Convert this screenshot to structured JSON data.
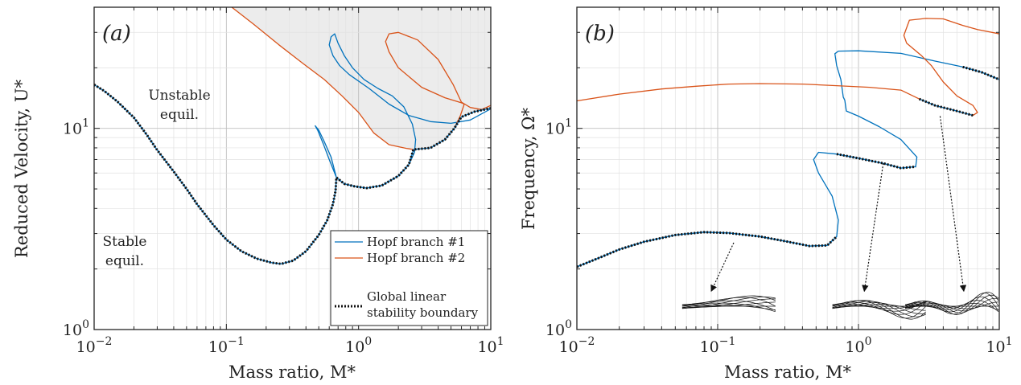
{
  "colors": {
    "hopf1": "#0072bd",
    "hopf2": "#d95319",
    "boundary": "#111111",
    "unstable_fill": "#ececec"
  },
  "chart_data": [
    {
      "panel": "(a)",
      "type": "line",
      "xscale": "log",
      "yscale": "log",
      "xlim": [
        0.01,
        10
      ],
      "ylim": [
        1,
        40
      ],
      "grid": true,
      "xlabel": "Mass ratio, M*",
      "ylabel": "Reduced Velocity, U*",
      "x_ticks": [
        "10^-2",
        "10^-1",
        "10^0",
        "10^1"
      ],
      "y_ticks": [
        "10^0",
        "10^1"
      ],
      "annotations": [
        {
          "text_line1": "Unstable",
          "text_line2": "equil.",
          "x": 0.12,
          "y": 14.5
        },
        {
          "text_line1": "Stable",
          "text_line2": "equil.",
          "x": 0.045,
          "y": 2.7
        }
      ],
      "legend": {
        "placement": "bottom-right",
        "entries": [
          {
            "label": "Hopf branch #1",
            "series": "hopf1"
          },
          {
            "label": "Hopf branch #2",
            "series": "hopf2"
          },
          {
            "label_line1": "Global linear",
            "label_line2": "stability boundary",
            "series": "boundary"
          }
        ]
      },
      "series": [
        {
          "key": "hopf1",
          "points": [
            [
              0.68,
              5.7
            ],
            [
              0.6,
              7.0
            ],
            [
              0.54,
              8.4
            ],
            [
              0.49,
              9.8
            ],
            [
              0.47,
              10.3
            ],
            [
              0.5,
              9.8
            ],
            [
              0.55,
              8.6
            ],
            [
              0.62,
              7.2
            ],
            [
              0.68,
              5.7
            ],
            [
              0.78,
              5.3
            ],
            [
              0.93,
              5.15
            ],
            [
              1.15,
              5.05
            ],
            [
              1.5,
              5.2
            ],
            [
              2.0,
              5.8
            ],
            [
              2.4,
              6.6
            ],
            [
              2.65,
              7.6
            ],
            [
              2.7,
              8.8
            ],
            [
              2.55,
              10.5
            ],
            [
              2.2,
              12.8
            ],
            [
              1.8,
              14.5
            ],
            [
              1.4,
              15.8
            ],
            [
              1.1,
              17.5
            ],
            [
              0.9,
              20.0
            ],
            [
              0.78,
              23.0
            ],
            [
              0.7,
              26.5
            ],
            [
              0.66,
              29.5
            ],
            [
              0.62,
              28.5
            ],
            [
              0.6,
              26.0
            ],
            [
              0.64,
              23.0
            ],
            [
              0.72,
              20.5
            ],
            [
              0.85,
              18.5
            ],
            [
              1.2,
              15.8
            ],
            [
              1.7,
              13.2
            ],
            [
              2.4,
              11.6
            ],
            [
              3.5,
              10.8
            ],
            [
              5.0,
              10.6
            ],
            [
              7.0,
              11.0
            ],
            [
              10.0,
              12.5
            ]
          ]
        },
        {
          "key": "hopf2",
          "points": [
            [
              0.11,
              40
            ],
            [
              0.16,
              33
            ],
            [
              0.25,
              26
            ],
            [
              0.38,
              21
            ],
            [
              0.55,
              17.5
            ],
            [
              0.75,
              14.5
            ],
            [
              1.0,
              12.0
            ],
            [
              1.3,
              9.5
            ],
            [
              1.7,
              8.3
            ],
            [
              2.3,
              7.95
            ],
            [
              2.6,
              7.85
            ],
            [
              3.5,
              8.0
            ],
            [
              4.5,
              8.8
            ],
            [
              5.3,
              10.0
            ],
            [
              5.9,
              11.6
            ],
            [
              6.3,
              13.2
            ],
            [
              6.0,
              13.4
            ],
            [
              4.5,
              14.2
            ],
            [
              3.0,
              16.0
            ],
            [
              2.0,
              20.0
            ],
            [
              1.7,
              24.0
            ],
            [
              1.6,
              27.0
            ],
            [
              1.7,
              29.5
            ],
            [
              2.0,
              30.0
            ],
            [
              2.8,
              27.5
            ],
            [
              4.0,
              22.0
            ],
            [
              5.2,
              16.5
            ],
            [
              6.0,
              13.5
            ],
            [
              7.0,
              12.7
            ],
            [
              8.5,
              12.4
            ],
            [
              10.0,
              13.0
            ]
          ]
        },
        {
          "key": "boundary",
          "points": [
            [
              0.01,
              16.5
            ],
            [
              0.012,
              15.3
            ],
            [
              0.015,
              13.6
            ],
            [
              0.02,
              11.3
            ],
            [
              0.025,
              9.3
            ],
            [
              0.03,
              7.8
            ],
            [
              0.04,
              6.1
            ],
            [
              0.05,
              5.0
            ],
            [
              0.06,
              4.2
            ],
            [
              0.08,
              3.3
            ],
            [
              0.1,
              2.8
            ],
            [
              0.13,
              2.45
            ],
            [
              0.17,
              2.25
            ],
            [
              0.22,
              2.15
            ],
            [
              0.26,
              2.12
            ],
            [
              0.32,
              2.2
            ],
            [
              0.4,
              2.45
            ],
            [
              0.5,
              2.95
            ],
            [
              0.58,
              3.5
            ],
            [
              0.64,
              4.2
            ],
            [
              0.67,
              4.9
            ],
            [
              0.68,
              5.7
            ],
            [
              0.78,
              5.3
            ],
            [
              0.93,
              5.15
            ],
            [
              1.15,
              5.05
            ],
            [
              1.5,
              5.2
            ],
            [
              2.0,
              5.8
            ],
            [
              2.4,
              6.6
            ],
            [
              2.6,
              7.85
            ],
            [
              3.5,
              8.0
            ],
            [
              4.5,
              8.8
            ],
            [
              5.3,
              10.0
            ],
            [
              6.0,
              11.4
            ],
            [
              7.5,
              12.1
            ],
            [
              10.0,
              12.6
            ]
          ]
        }
      ]
    },
    {
      "panel": "(b)",
      "type": "line",
      "xscale": "log",
      "yscale": "log",
      "xlim": [
        0.01,
        10
      ],
      "ylim": [
        1,
        40
      ],
      "grid": true,
      "xlabel": "Mass ratio, M*",
      "ylabel": "Frequency, Ω*",
      "x_ticks": [
        "10^-2",
        "10^-1",
        "10^0",
        "10^1"
      ],
      "y_ticks": [
        "10^0",
        "10^1"
      ],
      "insets": [
        {
          "name": "mode-shape-1",
          "pointer_from": [
            0.13,
            2.7
          ],
          "pointer_to": [
            0.09,
            1.55
          ]
        },
        {
          "name": "mode-shape-2",
          "pointer_from": [
            1.5,
            6.7
          ],
          "pointer_to": [
            1.1,
            1.55
          ]
        },
        {
          "name": "mode-shape-3",
          "pointer_from": [
            3.8,
            11.5
          ],
          "pointer_to": [
            5.6,
            1.55
          ]
        }
      ],
      "series": [
        {
          "key": "hopf1",
          "points": [
            [
              0.01,
              2.05
            ],
            [
              0.015,
              2.3
            ],
            [
              0.02,
              2.5
            ],
            [
              0.03,
              2.73
            ],
            [
              0.05,
              2.95
            ],
            [
              0.08,
              3.05
            ],
            [
              0.12,
              3.02
            ],
            [
              0.2,
              2.9
            ],
            [
              0.3,
              2.75
            ],
            [
              0.45,
              2.6
            ],
            [
              0.6,
              2.62
            ],
            [
              0.7,
              2.9
            ],
            [
              0.72,
              3.5
            ],
            [
              0.65,
              4.6
            ],
            [
              0.52,
              6.0
            ],
            [
              0.48,
              7.0
            ],
            [
              0.52,
              7.6
            ],
            [
              0.7,
              7.45
            ],
            [
              1.0,
              7.1
            ],
            [
              1.5,
              6.7
            ],
            [
              2.0,
              6.35
            ],
            [
              2.55,
              6.45
            ],
            [
              2.6,
              7.2
            ],
            [
              2.0,
              8.8
            ],
            [
              1.4,
              10.2
            ],
            [
              1.0,
              11.5
            ],
            [
              0.82,
              12.2
            ],
            [
              0.8,
              13.8
            ],
            [
              0.78,
              14.3
            ],
            [
              0.75,
              17.5
            ],
            [
              0.7,
              20.5
            ],
            [
              0.68,
              23.5
            ],
            [
              0.72,
              24.2
            ],
            [
              1.0,
              24.3
            ],
            [
              2.0,
              23.6
            ],
            [
              3.5,
              21.6
            ],
            [
              5.5,
              20.2
            ],
            [
              7.5,
              19.0
            ],
            [
              10.0,
              17.5
            ]
          ]
        },
        {
          "key": "hopf2",
          "points": [
            [
              0.01,
              13.7
            ],
            [
              0.02,
              14.8
            ],
            [
              0.04,
              15.7
            ],
            [
              0.07,
              16.2
            ],
            [
              0.12,
              16.6
            ],
            [
              0.2,
              16.7
            ],
            [
              0.4,
              16.6
            ],
            [
              0.7,
              16.3
            ],
            [
              1.2,
              16.0
            ],
            [
              2.0,
              15.5
            ],
            [
              2.7,
              14.0
            ],
            [
              3.5,
              13.0
            ],
            [
              5.0,
              12.2
            ],
            [
              6.5,
              11.6
            ],
            [
              7.0,
              12.0
            ],
            [
              6.5,
              13.0
            ],
            [
              5.0,
              14.5
            ],
            [
              4.0,
              17.0
            ],
            [
              3.3,
              20.5
            ],
            [
              2.8,
              23.0
            ],
            [
              2.2,
              26.5
            ],
            [
              2.1,
              29.0
            ],
            [
              2.3,
              34.5
            ],
            [
              3.0,
              35.2
            ],
            [
              4.0,
              35.0
            ],
            [
              5.5,
              32.5
            ],
            [
              7.0,
              31.0
            ],
            [
              10.0,
              29.5
            ]
          ]
        },
        {
          "key": "boundary",
          "segments": [
            [
              [
                0.01,
                2.05
              ],
              [
                0.015,
                2.3
              ],
              [
                0.02,
                2.5
              ],
              [
                0.03,
                2.73
              ],
              [
                0.05,
                2.95
              ],
              [
                0.08,
                3.05
              ],
              [
                0.12,
                3.02
              ],
              [
                0.2,
                2.9
              ],
              [
                0.3,
                2.75
              ],
              [
                0.45,
                2.6
              ],
              [
                0.6,
                2.62
              ],
              [
                0.7,
                2.9
              ]
            ],
            [
              [
                0.7,
                7.45
              ],
              [
                1.0,
                7.1
              ],
              [
                1.5,
                6.7
              ],
              [
                2.0,
                6.35
              ],
              [
                2.55,
                6.45
              ]
            ],
            [
              [
                2.7,
                14.0
              ],
              [
                3.5,
                13.0
              ],
              [
                5.0,
                12.2
              ],
              [
                6.5,
                11.6
              ]
            ],
            [
              [
                5.5,
                20.2
              ],
              [
                7.5,
                19.0
              ],
              [
                10.0,
                17.5
              ]
            ]
          ]
        }
      ]
    }
  ]
}
